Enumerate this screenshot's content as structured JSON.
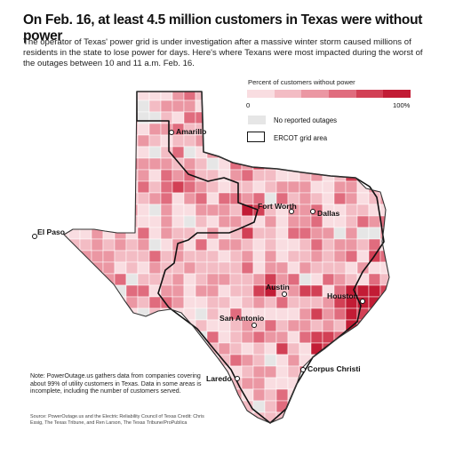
{
  "headline": "On Feb. 16, at least 4.5 million customers in Texas were without power",
  "dek": "The operator of Texas' power grid is under investigation after a massive winter storm caused millions of residents in the state to lose power for days. Here's where Texans were most impacted during the worst of the outages between 10 and 11 a.m. Feb. 16.",
  "legend": {
    "title": "Percent of customers without power",
    "min_label": "0",
    "max_label": "100%",
    "scale_colors": [
      "#f9dde1",
      "#f3bcc4",
      "#eb97a3",
      "#e06c7e",
      "#d24055",
      "#c21c35"
    ],
    "no_outage_label": "No reported outages",
    "no_outage_color": "#e6e6e6",
    "ercot_label": "ERCOT grid area"
  },
  "cities": {
    "amarillo": "Amarillo",
    "el_paso": "El Paso",
    "fort_worth": "Fort Worth",
    "dallas": "Dallas",
    "austin": "Austin",
    "houston": "Houston",
    "san_antonio": "San Antonio",
    "laredo": "Laredo",
    "corpus_christi": "Corpus Christi"
  },
  "note": "Note: PowerOutage.us gathers data from companies covering about 99% of utility customers in Texas. Data in some areas is incomplete, including the number of customers served.",
  "source": "Source: PowerOutage.us and the Electric Reliability Council of Texas Credit: Chris Essig, The Texas Tribune, and Ren Larson, The Texas Tribune/ProPublica"
}
